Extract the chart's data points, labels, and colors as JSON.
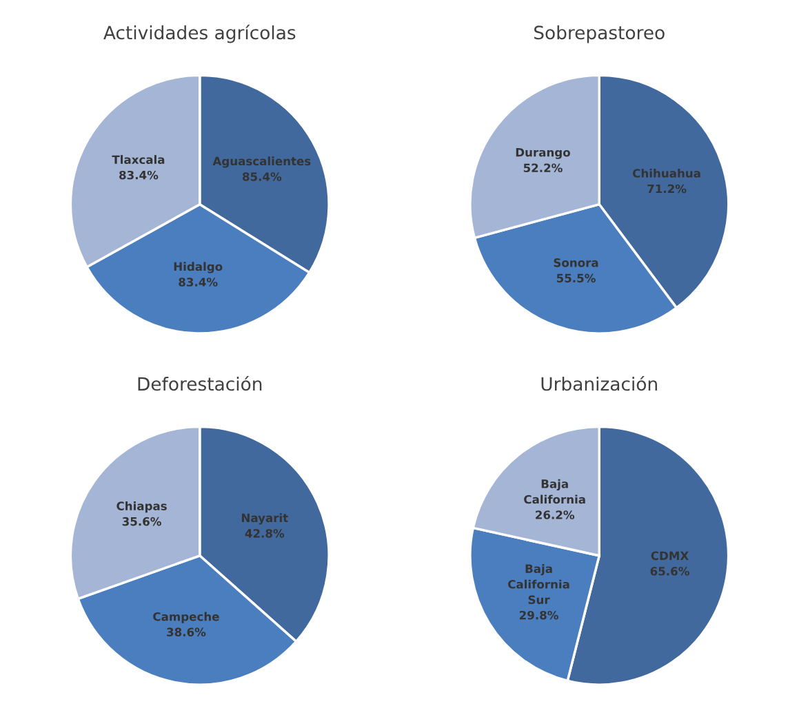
{
  "chart_data": [
    {
      "type": "pie",
      "title": "Actividades agrícolas",
      "categories": [
        "Aguascalientes",
        "Hidalgo",
        "Tlaxcala"
      ],
      "values": [
        85.4,
        83.4,
        83.4
      ],
      "value_labels": [
        "85.4%",
        "83.4%",
        "83.4%"
      ],
      "colors": [
        "#41699d",
        "#4a7ebf",
        "#a5b5d6"
      ],
      "legend": false
    },
    {
      "type": "pie",
      "title": "Sobrepastoreo",
      "categories": [
        "Chihuahua",
        "Sonora",
        "Durango"
      ],
      "values": [
        71.2,
        55.5,
        52.2
      ],
      "value_labels": [
        "71.2%",
        "55.5%",
        "52.2%"
      ],
      "colors": [
        "#41699d",
        "#4a7ebf",
        "#a5b5d6"
      ],
      "legend": false
    },
    {
      "type": "pie",
      "title": "Deforestación",
      "categories": [
        "Nayarit",
        "Campeche",
        "Chiapas"
      ],
      "values": [
        42.8,
        38.6,
        35.6
      ],
      "value_labels": [
        "42.8%",
        "38.6%",
        "35.6%"
      ],
      "colors": [
        "#41699d",
        "#4a7ebf",
        "#a5b5d6"
      ],
      "legend": false
    },
    {
      "type": "pie",
      "title": "Urbanización",
      "categories": [
        "CDMX",
        "Baja California Sur",
        "Baja California"
      ],
      "values": [
        65.6,
        29.8,
        26.2
      ],
      "value_labels": [
        "65.6%",
        "29.8%",
        "26.2%"
      ],
      "colors": [
        "#41699d",
        "#4a7ebf",
        "#a5b5d6"
      ],
      "legend": false
    }
  ]
}
